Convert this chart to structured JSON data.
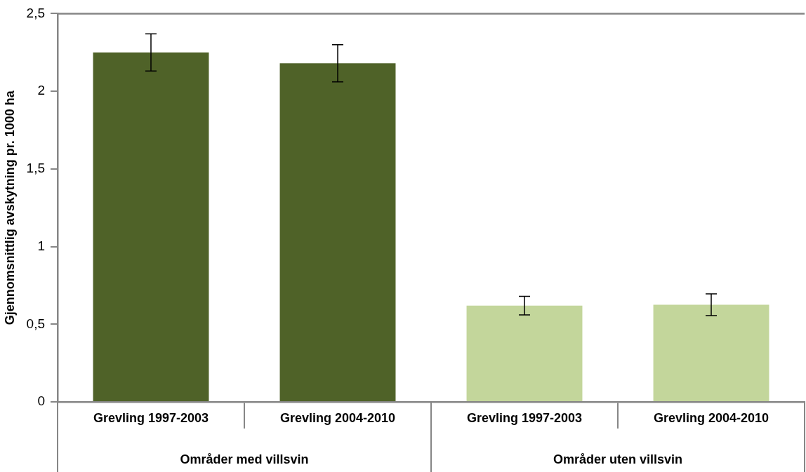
{
  "chart_data": {
    "type": "bar",
    "ylabel": "Gjennomsnittlig avskytning pr. 1000 ha",
    "categories": [
      "Grevling 1997-2003",
      "Grevling 2004-2010",
      "Grevling 1997-2003",
      "Grevling 2004-2010"
    ],
    "values": [
      2.25,
      2.18,
      0.62,
      0.625
    ],
    "colors": [
      "#4f6228",
      "#4f6228",
      "#c3d69b",
      "#c3d69b"
    ],
    "errors": [
      0.12,
      0.12,
      0.06,
      0.07
    ],
    "ylim": [
      0,
      2.5
    ],
    "yticks": [
      0,
      {
        "value": 0.5,
        "label": "0,5"
      },
      1,
      {
        "value": 1.5,
        "label": "1,5"
      },
      2,
      {
        "value": 2.5,
        "label": "2,5"
      }
    ],
    "annotations": [
      "Områder med villsvin",
      "Områder uten villsvin"
    ],
    "grid": false,
    "legend": false
  }
}
